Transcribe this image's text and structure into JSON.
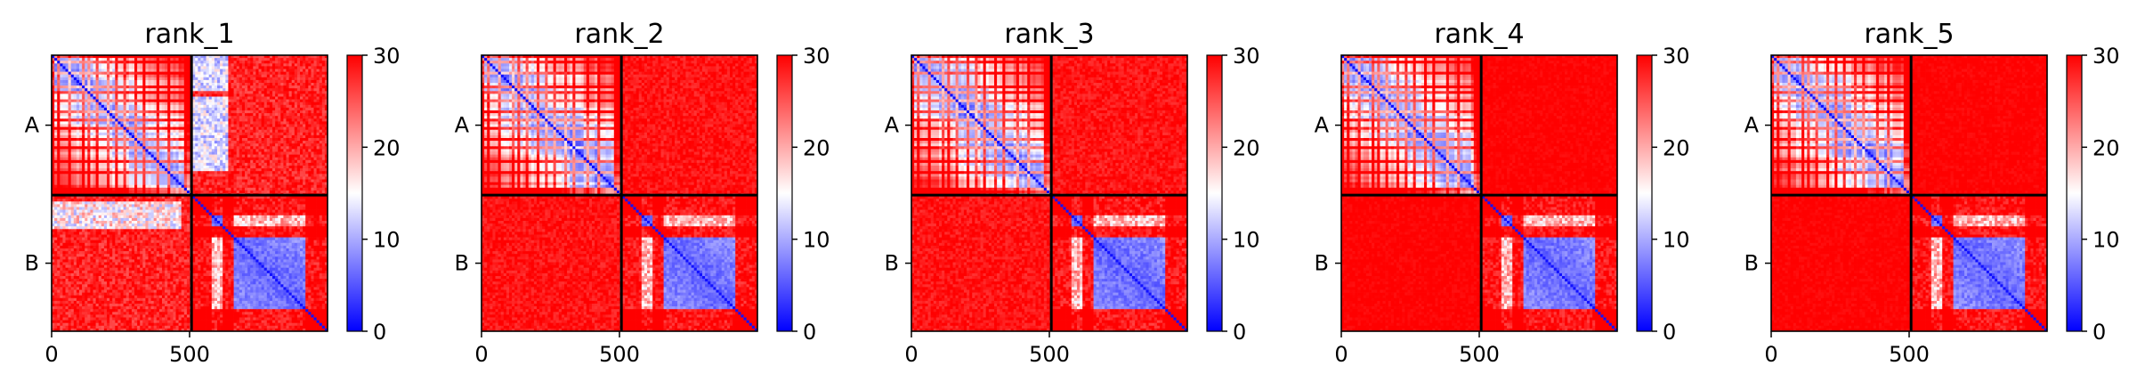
{
  "chart_data": {
    "type": "heatmap",
    "colormap": {
      "name": "bwr",
      "low": "#0000ff",
      "mid": "#ffffff",
      "high": "#ff0000"
    },
    "vmin": 0,
    "vmax": 30,
    "colorbar_ticks": [
      "0",
      "10",
      "20",
      "30"
    ],
    "chain_labels": [
      "A",
      "B"
    ],
    "chain_boundary": 507,
    "matrix_length": 1000,
    "x_ticks": [
      "0",
      "500"
    ],
    "x_tick_values": [
      0,
      500
    ],
    "panels": [
      {
        "title": "rank_1",
        "AB_fill": 28,
        "AB_variation": 6,
        "A_stripe_band": [
          505,
          640
        ]
      },
      {
        "title": "rank_2",
        "AB_fill": 29,
        "AB_variation": 4,
        "A_stripe_band": null
      },
      {
        "title": "rank_3",
        "AB_fill": 29,
        "AB_variation": 4,
        "A_stripe_band": null
      },
      {
        "title": "rank_4",
        "AB_fill": 30,
        "AB_variation": 2,
        "A_stripe_band": null
      },
      {
        "title": "rank_5",
        "AB_fill": 30,
        "AB_variation": 2,
        "A_stripe_band": null
      }
    ]
  }
}
